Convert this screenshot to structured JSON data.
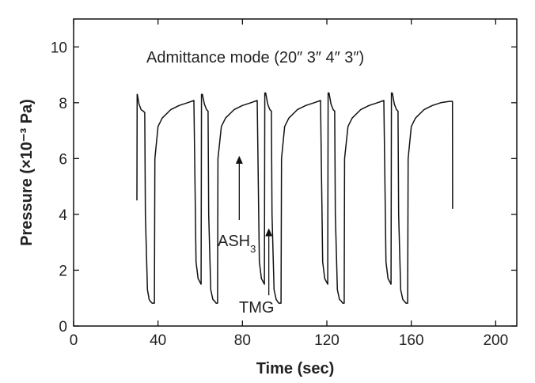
{
  "chart_data": {
    "type": "line",
    "title": "",
    "xlabel": "Time (sec)",
    "ylabel": "Pressure (×10⁻³ Pa)",
    "xlim": [
      0,
      210
    ],
    "ylim": [
      0,
      11
    ],
    "xticks": [
      0,
      40,
      80,
      120,
      160,
      200
    ],
    "yticks": [
      0,
      2,
      4,
      6,
      8,
      10
    ],
    "xtick_labels": [
      "0",
      "40",
      "80",
      "120",
      "160",
      "200"
    ],
    "ytick_labels": [
      "0",
      "2",
      "4",
      "6",
      "8",
      "10"
    ],
    "grid": false,
    "legend": "none",
    "annotations": {
      "mode_label": "Admittance mode (20″ 3″ 4″ 3″)",
      "ash3_main": "ASH",
      "ash3_sub": "3",
      "tmg": "TMG"
    },
    "series": [
      {
        "color": "#111111",
        "x": [
          30.0,
          30.1,
          30.2,
          31.0,
          32.0,
          33.0,
          33.7,
          34.0,
          35.0,
          35.8,
          36.2,
          37.2,
          38.3,
          38.5,
          40,
          42,
          46,
          50,
          54,
          57.0,
          58.0,
          59.0,
          60.4,
          60.6,
          61.0,
          62.0,
          63.0,
          63.7,
          64.0,
          65.0,
          66.0,
          66.8,
          67.5,
          68.2,
          68.4,
          70,
          72,
          76,
          80,
          84,
          87.0,
          88.0,
          89.0,
          90.4,
          90.6,
          91.0,
          92.0,
          93.0,
          93.7,
          94.0,
          95.0,
          96.0,
          96.5,
          97.2,
          98.3,
          98.5,
          100,
          102,
          106,
          110,
          114,
          117.0,
          118.0,
          119.0,
          120.4,
          120.6,
          121.0,
          122.0,
          123.0,
          123.7,
          124.0,
          125.0,
          126.0,
          126.8,
          127.5,
          128.2,
          128.4,
          130,
          132,
          136,
          140,
          144,
          147.0,
          148.0,
          149.0,
          150.4,
          150.6,
          151.0,
          152.0,
          153.0,
          153.7,
          154.0,
          155.0,
          156.0,
          156.6,
          157.5,
          158.3,
          158.5,
          160,
          162,
          166,
          170,
          174,
          178,
          179.5,
          179.6
        ],
        "y": [
          4.5,
          8.3,
          8.3,
          7.95,
          7.75,
          7.7,
          7.65,
          4.0,
          1.3,
          0.95,
          0.9,
          0.82,
          0.82,
          6.0,
          7.15,
          7.45,
          7.75,
          7.9,
          8.0,
          8.08,
          2.3,
          1.7,
          1.5,
          8.3,
          8.3,
          7.95,
          7.75,
          7.7,
          4.0,
          1.3,
          0.95,
          0.9,
          0.82,
          0.82,
          6.0,
          7.15,
          7.45,
          7.75,
          7.9,
          8.0,
          8.08,
          2.3,
          1.7,
          1.5,
          8.35,
          8.35,
          7.95,
          7.75,
          7.7,
          4.0,
          1.3,
          0.95,
          0.9,
          0.82,
          0.82,
          6.0,
          7.15,
          7.45,
          7.75,
          7.9,
          8.0,
          8.08,
          2.3,
          1.7,
          1.5,
          8.35,
          8.35,
          7.95,
          7.75,
          7.7,
          4.0,
          1.3,
          0.95,
          0.9,
          0.82,
          0.82,
          6.0,
          7.15,
          7.45,
          7.75,
          7.9,
          8.0,
          8.08,
          2.3,
          1.7,
          1.5,
          8.35,
          8.35,
          7.95,
          7.75,
          7.7,
          4.0,
          1.3,
          0.95,
          0.9,
          0.82,
          0.82,
          6.0,
          7.15,
          7.45,
          7.75,
          7.9,
          8.0,
          8.05,
          8.05,
          4.2
        ]
      }
    ],
    "arrows": [
      {
        "name": "ash3",
        "x": 78.5,
        "y_from": 3.8,
        "y_to": 6.1
      },
      {
        "name": "tmg",
        "x": 92.5,
        "y_from": 1.1,
        "y_to": 3.5
      }
    ]
  }
}
